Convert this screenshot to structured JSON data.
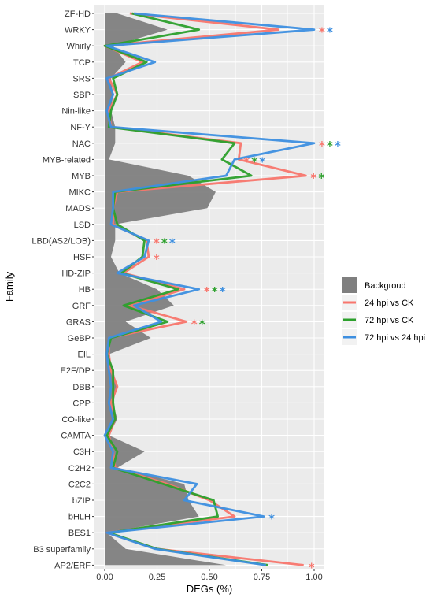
{
  "chart_data": {
    "type": "line",
    "xlabel": "DEGs (%)",
    "ylabel": "Family",
    "xlim": [
      0,
      1.05
    ],
    "x_ticks": [
      0,
      0.25,
      0.5,
      0.75,
      1.0
    ],
    "x_tick_labels": [
      "0.00",
      "0.25",
      "0.50",
      "0.75",
      "1.00"
    ],
    "grid": true,
    "legend_position": "right",
    "categories": [
      "ZF-HD",
      "WRKY",
      "Whirly",
      "TCP",
      "SRS",
      "SBP",
      "Nin-like",
      "NF-Y",
      "NAC",
      "MYB-related",
      "MYB",
      "MIKC",
      "MADS",
      "LSD",
      "LBD(AS2/LOB)",
      "HSF",
      "HD-ZIP",
      "HB",
      "GRF",
      "GRAS",
      "GeBP",
      "EIL",
      "E2F/DP",
      "DBB",
      "CPP",
      "CO-like",
      "CAMTA",
      "C3H",
      "C2H2",
      "C2C2",
      "bZIP",
      "bHLH",
      "BES1",
      "B3 superfamily",
      "AP2/ERF"
    ],
    "background": {
      "name": "Backgroud",
      "color": "#7f7f7f",
      "values": [
        0.06,
        0.3,
        0.04,
        0.1,
        0.03,
        0.04,
        0.03,
        0.05,
        0.05,
        0.02,
        0.4,
        0.53,
        0.49,
        0.05,
        0.05,
        0.03,
        0.07,
        0.25,
        0.33,
        0.1,
        0.22,
        0.02,
        0.04,
        0.06,
        0.04,
        0.06,
        0.02,
        0.19,
        0.06,
        0.38,
        0.4,
        0.45,
        0.01,
        0.1,
        0.58
      ]
    },
    "series": [
      {
        "name": "24 hpi vs CK",
        "color": "#f8766d",
        "values": [
          0.12,
          0.83,
          0.0,
          0.18,
          0.02,
          0.06,
          0.02,
          0.03,
          0.65,
          0.64,
          0.96,
          0.06,
          0.04,
          0.04,
          0.2,
          0.21,
          0.09,
          0.38,
          0.12,
          0.39,
          0.02,
          0.02,
          0.03,
          0.06,
          0.03,
          0.05,
          0.02,
          0.04,
          0.05,
          0.3,
          0.5,
          0.62,
          0.01,
          0.25,
          0.95
        ],
        "significance": [
          "",
          "*",
          "",
          "",
          "",
          "",
          "",
          "",
          "*",
          "*",
          "*",
          "",
          "",
          "",
          "*",
          "*",
          "",
          "*",
          "",
          "*",
          "",
          "",
          "",
          "",
          "",
          "",
          "",
          "",
          "",
          "",
          "",
          "",
          "",
          "",
          "*"
        ]
      },
      {
        "name": "72 hpi vs CK",
        "color": "#2ca02c",
        "values": [
          0.13,
          0.45,
          0.0,
          0.2,
          0.04,
          0.06,
          0.03,
          0.02,
          0.62,
          0.56,
          0.7,
          0.05,
          0.04,
          0.06,
          0.19,
          0.18,
          0.08,
          0.35,
          0.09,
          0.3,
          0.03,
          0.01,
          0.04,
          0.04,
          0.04,
          0.05,
          0.01,
          0.06,
          0.04,
          0.28,
          0.52,
          0.54,
          0.02,
          0.25,
          0.78
        ],
        "significance": [
          "",
          "",
          "",
          "",
          "",
          "",
          "",
          "",
          "*",
          "*",
          "*",
          "",
          "",
          "",
          "*",
          "",
          "",
          "*",
          "",
          "*",
          "",
          "",
          "",
          "",
          "",
          "",
          "",
          "",
          "",
          "",
          "",
          "",
          "",
          "",
          ""
        ]
      },
      {
        "name": "72 hpi vs 24 hpi",
        "color": "#3d8fe0",
        "values": [
          0.14,
          1.0,
          0.01,
          0.24,
          0.01,
          0.04,
          0.01,
          0.03,
          1.0,
          0.62,
          0.58,
          0.04,
          0.04,
          0.03,
          0.21,
          0.19,
          0.06,
          0.45,
          0.14,
          0.27,
          0.02,
          0.01,
          0.02,
          0.03,
          0.02,
          0.04,
          0.0,
          0.04,
          0.03,
          0.44,
          0.38,
          0.76,
          0.01,
          0.24,
          0.77
        ],
        "significance": [
          "",
          "*",
          "",
          "",
          "",
          "",
          "",
          "",
          "*",
          "*",
          "",
          "",
          "",
          "",
          "*",
          "",
          "",
          "*",
          "",
          "",
          "",
          "",
          "",
          "",
          "",
          "",
          "",
          "",
          "",
          "",
          "",
          "*",
          "",
          "",
          ""
        ]
      }
    ]
  }
}
